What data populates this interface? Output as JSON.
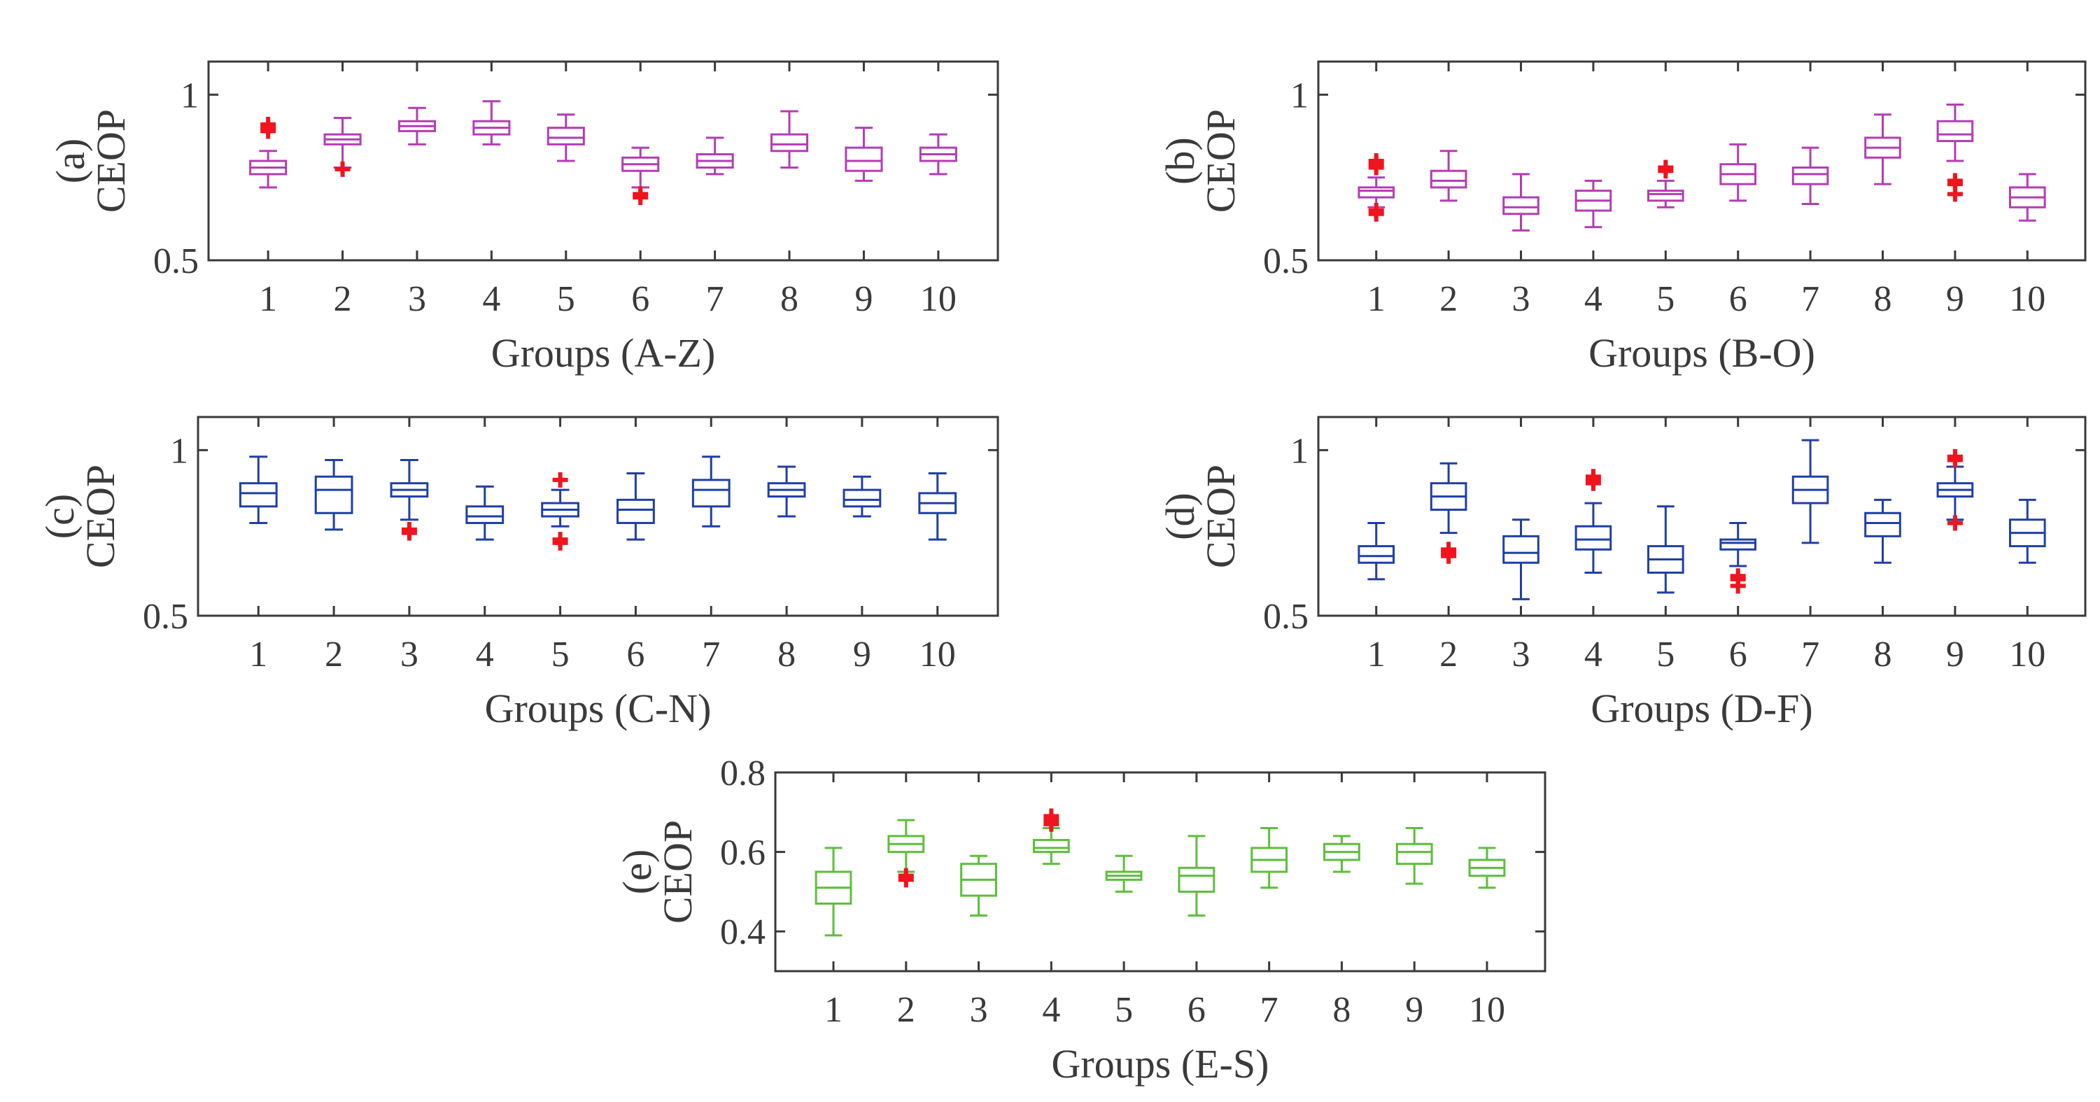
{
  "colors": {
    "magenta": "#b43cb4",
    "blue": "#1f3fa8",
    "green": "#5cbf3a",
    "outlier": "#f0141e",
    "axis": "#3a3a3a",
    "background": "#ffffff"
  },
  "chart_data": [
    {
      "type": "box",
      "panel_label": "(a)",
      "ylabel": "CEOP",
      "xlabel": "Groups (A-Z)",
      "categories": [
        "1",
        "2",
        "3",
        "4",
        "5",
        "6",
        "7",
        "8",
        "9",
        "10"
      ],
      "ylim": [
        0.5,
        1.1
      ],
      "yticks": [
        0.5,
        1
      ],
      "ytick_labels": [
        "0.5",
        "1"
      ],
      "color": "magenta",
      "boxes": [
        {
          "min": 0.72,
          "q1": 0.76,
          "median": 0.78,
          "q3": 0.8,
          "max": 0.83,
          "outliers": [
            0.9,
            0.89,
            0.91
          ]
        },
        {
          "min": 0.78,
          "q1": 0.85,
          "median": 0.865,
          "q3": 0.88,
          "max": 0.93,
          "outliers": [
            0.775
          ]
        },
        {
          "min": 0.85,
          "q1": 0.89,
          "median": 0.905,
          "q3": 0.92,
          "max": 0.96,
          "outliers": []
        },
        {
          "min": 0.85,
          "q1": 0.88,
          "median": 0.9,
          "q3": 0.92,
          "max": 0.98,
          "outliers": []
        },
        {
          "min": 0.8,
          "q1": 0.85,
          "median": 0.87,
          "q3": 0.9,
          "max": 0.94,
          "outliers": []
        },
        {
          "min": 0.72,
          "q1": 0.77,
          "median": 0.79,
          "q3": 0.81,
          "max": 0.84,
          "outliers": [
            0.7,
            0.69
          ]
        },
        {
          "min": 0.76,
          "q1": 0.78,
          "median": 0.8,
          "q3": 0.82,
          "max": 0.87,
          "outliers": []
        },
        {
          "min": 0.78,
          "q1": 0.83,
          "median": 0.85,
          "q3": 0.88,
          "max": 0.95,
          "outliers": []
        },
        {
          "min": 0.74,
          "q1": 0.77,
          "median": 0.8,
          "q3": 0.84,
          "max": 0.9,
          "outliers": []
        },
        {
          "min": 0.76,
          "q1": 0.8,
          "median": 0.82,
          "q3": 0.84,
          "max": 0.88,
          "outliers": []
        }
      ]
    },
    {
      "type": "box",
      "panel_label": "(b)",
      "ylabel": "CEOP",
      "xlabel": "Groups (B-O)",
      "categories": [
        "1",
        "2",
        "3",
        "4",
        "5",
        "6",
        "7",
        "8",
        "9",
        "10"
      ],
      "ylim": [
        0.5,
        1.1
      ],
      "yticks": [
        0.5,
        1
      ],
      "ytick_labels": [
        "0.5",
        "1"
      ],
      "color": "magenta",
      "boxes": [
        {
          "min": 0.66,
          "q1": 0.69,
          "median": 0.71,
          "q3": 0.72,
          "max": 0.75,
          "outliers": [
            0.79,
            0.8,
            0.78,
            0.65,
            0.64
          ]
        },
        {
          "min": 0.68,
          "q1": 0.72,
          "median": 0.74,
          "q3": 0.77,
          "max": 0.83,
          "outliers": []
        },
        {
          "min": 0.59,
          "q1": 0.64,
          "median": 0.66,
          "q3": 0.69,
          "max": 0.76,
          "outliers": []
        },
        {
          "min": 0.6,
          "q1": 0.65,
          "median": 0.68,
          "q3": 0.71,
          "max": 0.74,
          "outliers": []
        },
        {
          "min": 0.66,
          "q1": 0.68,
          "median": 0.7,
          "q3": 0.71,
          "max": 0.74,
          "outliers": [
            0.77,
            0.78
          ]
        },
        {
          "min": 0.68,
          "q1": 0.73,
          "median": 0.76,
          "q3": 0.79,
          "max": 0.85,
          "outliers": []
        },
        {
          "min": 0.67,
          "q1": 0.73,
          "median": 0.76,
          "q3": 0.78,
          "max": 0.84,
          "outliers": []
        },
        {
          "min": 0.73,
          "q1": 0.81,
          "median": 0.84,
          "q3": 0.87,
          "max": 0.94,
          "outliers": []
        },
        {
          "min": 0.8,
          "q1": 0.86,
          "median": 0.88,
          "q3": 0.92,
          "max": 0.97,
          "outliers": [
            0.73,
            0.74,
            0.7
          ]
        },
        {
          "min": 0.62,
          "q1": 0.66,
          "median": 0.69,
          "q3": 0.72,
          "max": 0.76,
          "outliers": []
        }
      ]
    },
    {
      "type": "box",
      "panel_label": "(c)",
      "ylabel": "CEOP",
      "xlabel": "Groups (C-N)",
      "categories": [
        "1",
        "2",
        "3",
        "4",
        "5",
        "6",
        "7",
        "8",
        "9",
        "10"
      ],
      "ylim": [
        0.5,
        1.1
      ],
      "yticks": [
        0.5,
        1
      ],
      "ytick_labels": [
        "0.5",
        "1"
      ],
      "color": "blue",
      "boxes": [
        {
          "min": 0.78,
          "q1": 0.83,
          "median": 0.87,
          "q3": 0.9,
          "max": 0.98,
          "outliers": []
        },
        {
          "min": 0.76,
          "q1": 0.81,
          "median": 0.88,
          "q3": 0.92,
          "max": 0.97,
          "outliers": []
        },
        {
          "min": 0.79,
          "q1": 0.86,
          "median": 0.88,
          "q3": 0.9,
          "max": 0.97,
          "outliers": [
            0.76,
            0.75
          ]
        },
        {
          "min": 0.73,
          "q1": 0.78,
          "median": 0.8,
          "q3": 0.83,
          "max": 0.89,
          "outliers": []
        },
        {
          "min": 0.77,
          "q1": 0.8,
          "median": 0.82,
          "q3": 0.84,
          "max": 0.88,
          "outliers": [
            0.91,
            0.73,
            0.72
          ]
        },
        {
          "min": 0.73,
          "q1": 0.78,
          "median": 0.82,
          "q3": 0.85,
          "max": 0.93,
          "outliers": []
        },
        {
          "min": 0.77,
          "q1": 0.83,
          "median": 0.88,
          "q3": 0.91,
          "max": 0.98,
          "outliers": []
        },
        {
          "min": 0.8,
          "q1": 0.86,
          "median": 0.88,
          "q3": 0.9,
          "max": 0.95,
          "outliers": []
        },
        {
          "min": 0.8,
          "q1": 0.83,
          "median": 0.85,
          "q3": 0.88,
          "max": 0.92,
          "outliers": []
        },
        {
          "min": 0.73,
          "q1": 0.81,
          "median": 0.84,
          "q3": 0.87,
          "max": 0.93,
          "outliers": []
        }
      ]
    },
    {
      "type": "box",
      "panel_label": "(d)",
      "ylabel": "CEOP",
      "xlabel": "Groups (D-F)",
      "categories": [
        "1",
        "2",
        "3",
        "4",
        "5",
        "6",
        "7",
        "8",
        "9",
        "10"
      ],
      "ylim": [
        0.5,
        1.1
      ],
      "yticks": [
        0.5,
        1
      ],
      "ytick_labels": [
        "0.5",
        "1"
      ],
      "color": "blue",
      "boxes": [
        {
          "min": 0.61,
          "q1": 0.66,
          "median": 0.68,
          "q3": 0.71,
          "max": 0.78,
          "outliers": []
        },
        {
          "min": 0.75,
          "q1": 0.82,
          "median": 0.86,
          "q3": 0.9,
          "max": 0.96,
          "outliers": [
            0.7,
            0.69,
            0.68
          ]
        },
        {
          "min": 0.55,
          "q1": 0.66,
          "median": 0.69,
          "q3": 0.74,
          "max": 0.79,
          "outliers": []
        },
        {
          "min": 0.63,
          "q1": 0.7,
          "median": 0.73,
          "q3": 0.77,
          "max": 0.84,
          "outliers": [
            0.91,
            0.92,
            0.9
          ]
        },
        {
          "min": 0.57,
          "q1": 0.63,
          "median": 0.67,
          "q3": 0.71,
          "max": 0.83,
          "outliers": []
        },
        {
          "min": 0.65,
          "q1": 0.7,
          "median": 0.72,
          "q3": 0.73,
          "max": 0.78,
          "outliers": [
            0.62,
            0.61,
            0.59
          ]
        },
        {
          "min": 0.72,
          "q1": 0.84,
          "median": 0.88,
          "q3": 0.92,
          "max": 1.03,
          "outliers": []
        },
        {
          "min": 0.66,
          "q1": 0.74,
          "median": 0.78,
          "q3": 0.81,
          "max": 0.85,
          "outliers": []
        },
        {
          "min": 0.79,
          "q1": 0.86,
          "median": 0.88,
          "q3": 0.9,
          "max": 0.95,
          "outliers": [
            0.97,
            0.98,
            0.78
          ]
        },
        {
          "min": 0.66,
          "q1": 0.71,
          "median": 0.75,
          "q3": 0.79,
          "max": 0.85,
          "outliers": []
        }
      ]
    },
    {
      "type": "box",
      "panel_label": "(e)",
      "ylabel": "CEOP",
      "xlabel": "Groups (E-S)",
      "categories": [
        "1",
        "2",
        "3",
        "4",
        "5",
        "6",
        "7",
        "8",
        "9",
        "10"
      ],
      "ylim": [
        0.3,
        0.8
      ],
      "yticks": [
        0.4,
        0.6,
        0.8
      ],
      "ytick_labels": [
        "0.4",
        "0.6",
        "0.8"
      ],
      "color": "green",
      "boxes": [
        {
          "min": 0.39,
          "q1": 0.47,
          "median": 0.51,
          "q3": 0.55,
          "max": 0.61,
          "outliers": []
        },
        {
          "min": 0.55,
          "q1": 0.6,
          "median": 0.62,
          "q3": 0.64,
          "max": 0.68,
          "outliers": [
            0.54,
            0.53
          ]
        },
        {
          "min": 0.44,
          "q1": 0.49,
          "median": 0.53,
          "q3": 0.57,
          "max": 0.59,
          "outliers": []
        },
        {
          "min": 0.57,
          "q1": 0.6,
          "median": 0.61,
          "q3": 0.63,
          "max": 0.66,
          "outliers": [
            0.68,
            0.69,
            0.67
          ]
        },
        {
          "min": 0.5,
          "q1": 0.53,
          "median": 0.54,
          "q3": 0.55,
          "max": 0.59,
          "outliers": []
        },
        {
          "min": 0.44,
          "q1": 0.5,
          "median": 0.54,
          "q3": 0.56,
          "max": 0.64,
          "outliers": []
        },
        {
          "min": 0.51,
          "q1": 0.55,
          "median": 0.58,
          "q3": 0.61,
          "max": 0.66,
          "outliers": []
        },
        {
          "min": 0.55,
          "q1": 0.58,
          "median": 0.6,
          "q3": 0.62,
          "max": 0.64,
          "outliers": []
        },
        {
          "min": 0.52,
          "q1": 0.57,
          "median": 0.6,
          "q3": 0.62,
          "max": 0.66,
          "outliers": []
        },
        {
          "min": 0.51,
          "q1": 0.54,
          "median": 0.56,
          "q3": 0.58,
          "max": 0.61,
          "outliers": []
        }
      ]
    }
  ]
}
